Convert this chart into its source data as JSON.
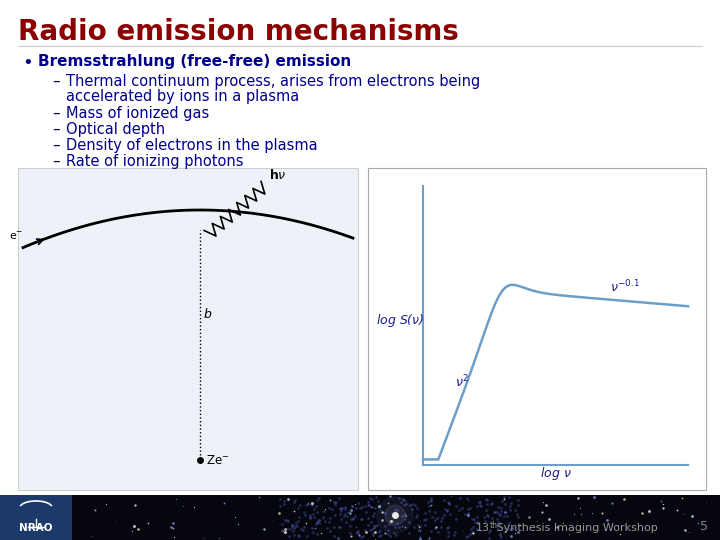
{
  "title": "Radio emission mechanisms",
  "title_color": "#8B0000",
  "title_fontsize": 20,
  "bg_color": "#FFFFFF",
  "bullet_color": "#00008B",
  "bullet_main": "Bremsstrahlung (free-free) emission",
  "sub_bullet_line1a": "Thermal continuum process, arises from electrons being",
  "sub_bullet_line1b": "accelerated by ions in a plasma",
  "sub_bullet_2": "Mass of ionized gas",
  "sub_bullet_3": "Optical depth",
  "sub_bullet_4": "Density of electrons in the plasma",
  "sub_bullet_5": "Rate of ionizing photons",
  "footer_text": "Synthesis Imaging Workshop",
  "footer_num": "13",
  "footer_sup": "th",
  "footer_page": "5",
  "curve_color": "#6b9ec8",
  "axis_color": "#6b9ec8",
  "label_color": "#1a1a8c",
  "diag_bg": "#eef2f8",
  "plot_border": "#aaaaaa"
}
